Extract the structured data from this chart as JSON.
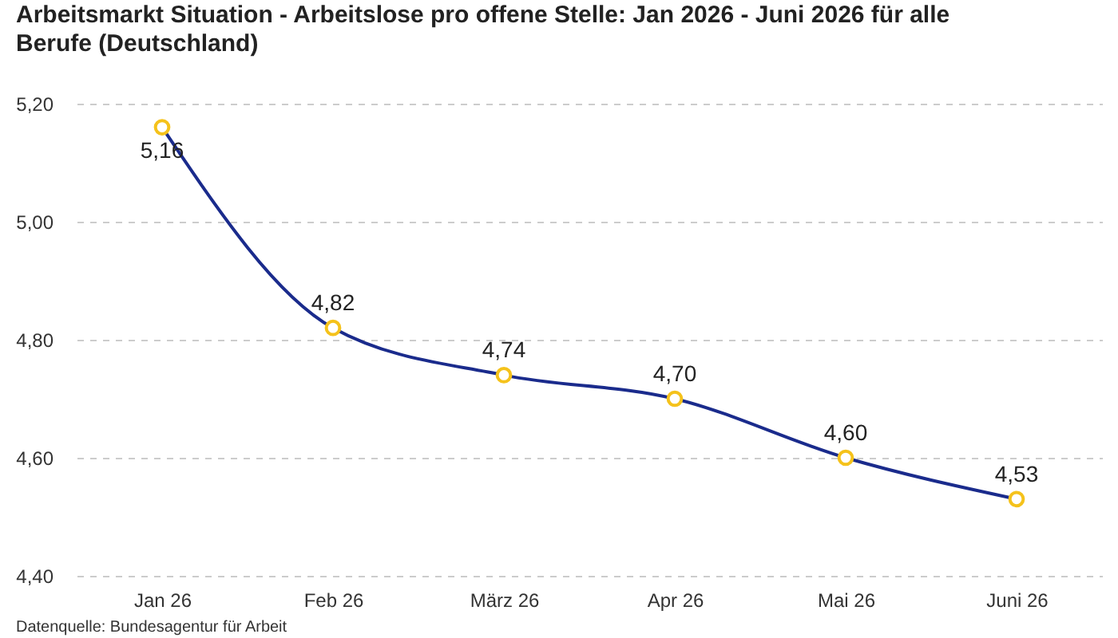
{
  "chart_data": {
    "type": "line",
    "title": "Arbeitsmarkt Situation - Arbeitslose pro offene Stelle: Jan 2026 - Juni 2026 für alle Berufe (Deutschland)",
    "categories": [
      "Jan 26",
      "Feb 26",
      "März 26",
      "Apr 26",
      "Mai 26",
      "Juni 26"
    ],
    "series": [
      {
        "color": "#1a2b8c",
        "colors": [
          "#f5c21b",
          "#f5c21b",
          "#f5c21b",
          "#f5c21b",
          "#f5c21b",
          "#f5c21b"
        ],
        "values": [
          5.16,
          4.82,
          4.74,
          4.7,
          4.6,
          4.53
        ],
        "value_labels": [
          "5,16",
          "4,82",
          "4,74",
          "4,70",
          "4,60",
          "4,53"
        ]
      }
    ],
    "ylim": [
      4.4,
      5.2
    ],
    "yticks": [
      {
        "value": 4.4,
        "label": "4,40"
      },
      {
        "value": 4.6,
        "label": "4,60"
      },
      {
        "value": 4.8,
        "label": "4,80"
      },
      {
        "value": 5.0,
        "label": "5,00"
      },
      {
        "value": 5.2,
        "label": "5,20"
      }
    ],
    "grid": "y",
    "legend": false,
    "marker": "circle",
    "line_style": "solid",
    "annotations": [
      "Datenquelle: Bundesagentur für Arbeit"
    ]
  }
}
